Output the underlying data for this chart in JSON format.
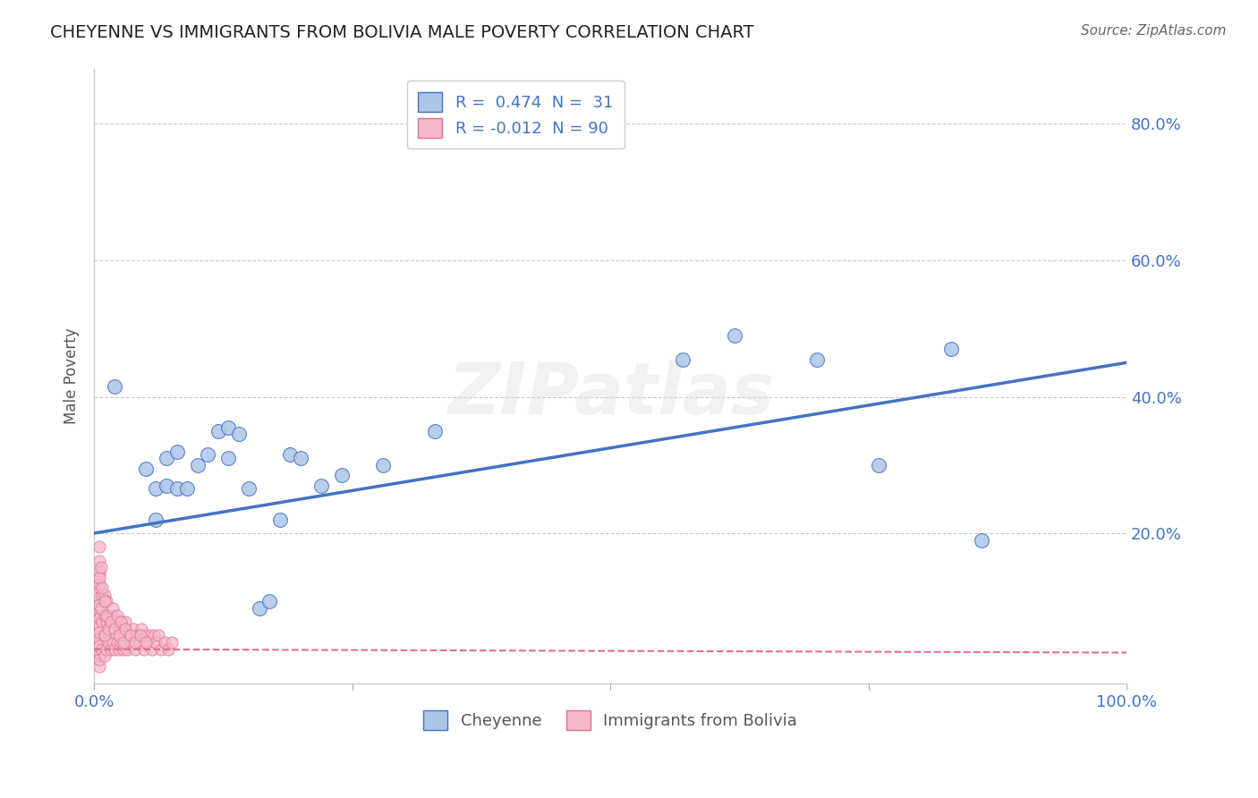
{
  "title": "CHEYENNE VS IMMIGRANTS FROM BOLIVIA MALE POVERTY CORRELATION CHART",
  "source": "Source: ZipAtlas.com",
  "ylabel": "Male Poverty",
  "legend_labels": [
    "Cheyenne",
    "Immigrants from Bolivia"
  ],
  "R_cheyenne": 0.474,
  "N_cheyenne": 31,
  "R_bolivia": -0.012,
  "N_bolivia": 90,
  "xlim": [
    0.0,
    1.0
  ],
  "ylim": [
    -0.02,
    0.88
  ],
  "yticks": [
    0.0,
    0.2,
    0.4,
    0.6,
    0.8
  ],
  "ytick_labels": [
    "",
    "20.0%",
    "40.0%",
    "60.0%",
    "80.0%"
  ],
  "xticks": [
    0.0,
    0.25,
    0.5,
    0.75,
    1.0
  ],
  "xtick_labels": [
    "0.0%",
    "",
    "",
    "",
    "100.0%"
  ],
  "color_cheyenne": "#adc6e8",
  "color_bolivia": "#f5b8c8",
  "line_color_cheyenne": "#4472c4",
  "line_color_bolivia": "#e07090",
  "background_color": "#ffffff",
  "grid_color": "#c8c8c8",
  "watermark": "ZIPatlas",
  "cheyenne_x": [
    0.02,
    0.05,
    0.06,
    0.06,
    0.07,
    0.07,
    0.08,
    0.08,
    0.09,
    0.1,
    0.11,
    0.12,
    0.13,
    0.13,
    0.14,
    0.15,
    0.16,
    0.17,
    0.18,
    0.19,
    0.2,
    0.22,
    0.24,
    0.28,
    0.33,
    0.57,
    0.62,
    0.7,
    0.76,
    0.83,
    0.86
  ],
  "cheyenne_y": [
    0.415,
    0.295,
    0.265,
    0.22,
    0.27,
    0.31,
    0.265,
    0.32,
    0.265,
    0.3,
    0.315,
    0.35,
    0.31,
    0.355,
    0.345,
    0.265,
    0.09,
    0.1,
    0.22,
    0.315,
    0.31,
    0.27,
    0.285,
    0.3,
    0.35,
    0.455,
    0.49,
    0.455,
    0.3,
    0.47,
    0.19
  ],
  "bolivia_x": [
    0.005,
    0.005,
    0.005,
    0.005,
    0.005,
    0.005,
    0.005,
    0.005,
    0.005,
    0.005,
    0.005,
    0.005,
    0.005,
    0.005,
    0.005,
    0.005,
    0.005,
    0.005,
    0.005,
    0.005,
    0.008,
    0.008,
    0.008,
    0.01,
    0.01,
    0.01,
    0.01,
    0.012,
    0.012,
    0.012,
    0.014,
    0.014,
    0.016,
    0.016,
    0.018,
    0.018,
    0.02,
    0.02,
    0.022,
    0.022,
    0.024,
    0.024,
    0.026,
    0.026,
    0.028,
    0.028,
    0.03,
    0.03,
    0.032,
    0.034,
    0.036,
    0.038,
    0.04,
    0.042,
    0.044,
    0.046,
    0.048,
    0.05,
    0.052,
    0.054,
    0.056,
    0.058,
    0.06,
    0.062,
    0.065,
    0.068,
    0.072,
    0.075,
    0.005,
    0.005,
    0.005,
    0.007,
    0.007,
    0.008,
    0.01,
    0.01,
    0.012,
    0.014,
    0.016,
    0.018,
    0.02,
    0.022,
    0.024,
    0.026,
    0.028,
    0.03,
    0.035,
    0.04,
    0.045,
    0.05
  ],
  "bolivia_y": [
    0.02,
    0.04,
    0.06,
    0.08,
    0.1,
    0.12,
    0.14,
    0.005,
    0.025,
    0.045,
    0.065,
    0.085,
    0.105,
    0.125,
    0.145,
    0.015,
    0.035,
    0.055,
    0.075,
    0.095,
    0.03,
    0.07,
    0.11,
    0.02,
    0.05,
    0.08,
    0.11,
    0.03,
    0.07,
    0.1,
    0.04,
    0.08,
    0.03,
    0.07,
    0.04,
    0.08,
    0.03,
    0.07,
    0.04,
    0.07,
    0.03,
    0.06,
    0.04,
    0.07,
    0.03,
    0.06,
    0.04,
    0.07,
    0.03,
    0.05,
    0.04,
    0.06,
    0.03,
    0.05,
    0.04,
    0.06,
    0.03,
    0.05,
    0.04,
    0.05,
    0.03,
    0.05,
    0.04,
    0.05,
    0.03,
    0.04,
    0.03,
    0.04,
    0.16,
    0.18,
    0.135,
    0.15,
    0.09,
    0.12,
    0.1,
    0.05,
    0.08,
    0.06,
    0.07,
    0.09,
    0.06,
    0.08,
    0.05,
    0.07,
    0.04,
    0.06,
    0.05,
    0.04,
    0.05,
    0.04
  ]
}
